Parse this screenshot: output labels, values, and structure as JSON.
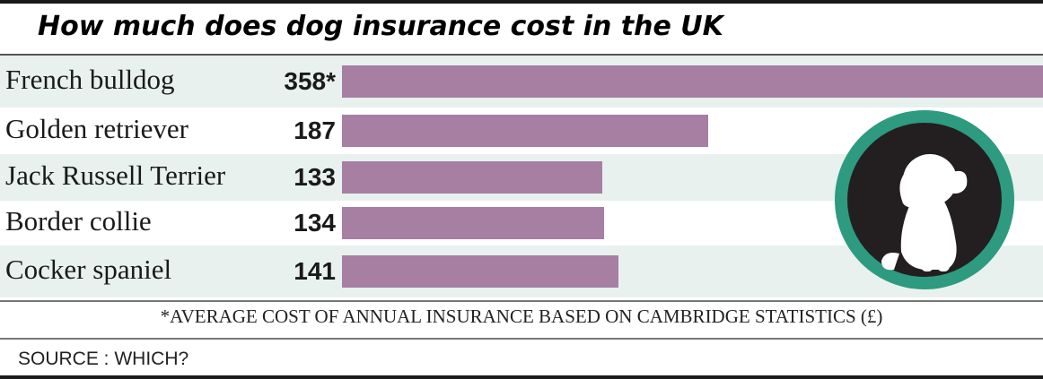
{
  "chart_data": {
    "type": "bar",
    "orientation": "horizontal",
    "title": "How much does dog insurance cost in the UK",
    "categories": [
      "French bulldog",
      "Golden retriever",
      "Jack Russell Terrier",
      "Border collie",
      "Cocker spaniel"
    ],
    "values": [
      358,
      187,
      133,
      134,
      141
    ],
    "value_labels": [
      "358*",
      "187",
      "133",
      "134",
      "141"
    ],
    "xlim": [
      0,
      358
    ],
    "grid": false,
    "legend": "none",
    "footnote": "*AVERAGE COST OF ANNUAL INSURANCE BASED ON CAMBRIDGE  STATISTICS (£)",
    "source": "SOURCE : WHICH?"
  },
  "colors": {
    "bar": "#a67fa3",
    "band_shaded": "#e8f1ee",
    "band_plain": "#ffffff",
    "badge_ring": "#2e9a7f",
    "badge_fill": "#231f20",
    "dog": "#ffffff"
  },
  "icons": {
    "badge": "dog-silhouette-icon"
  }
}
